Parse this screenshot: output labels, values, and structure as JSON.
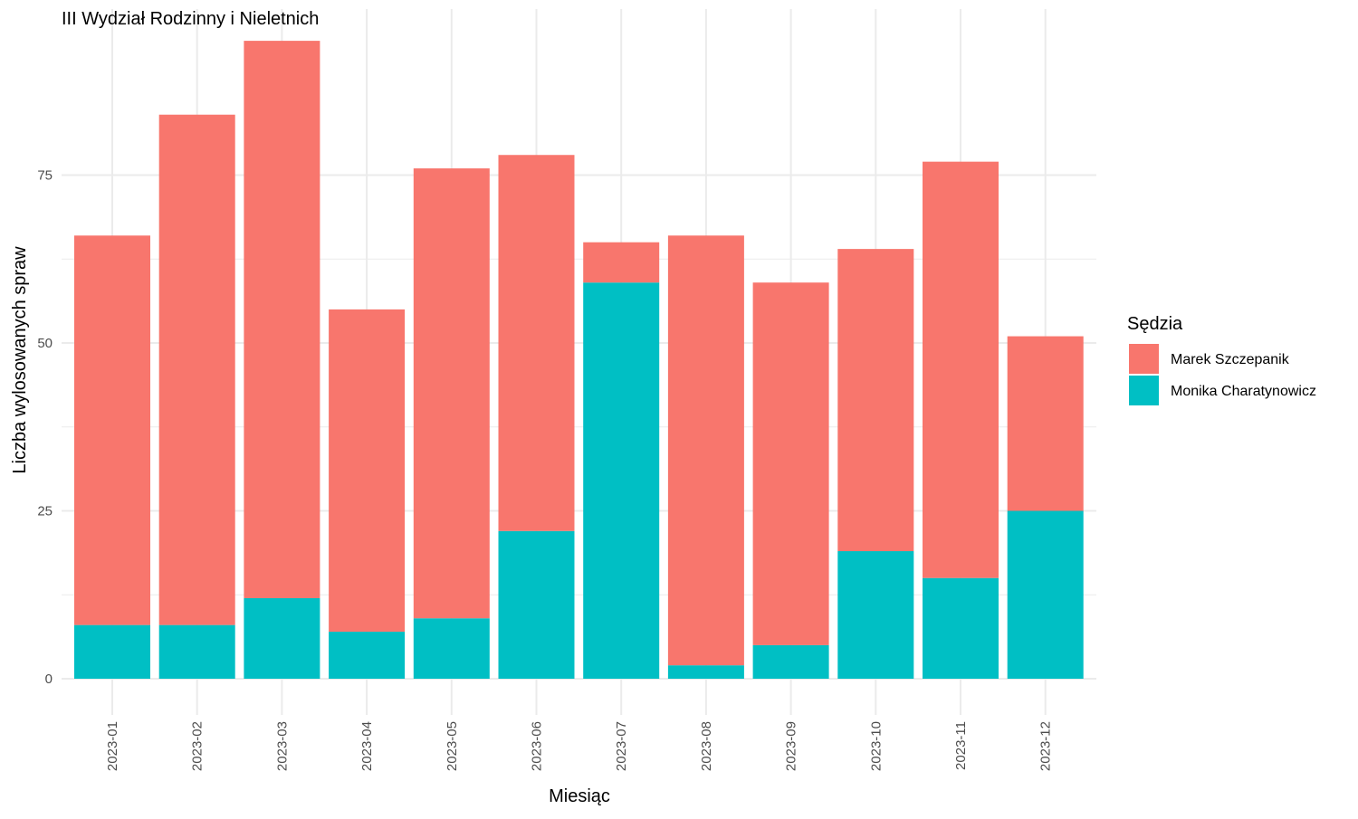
{
  "chart_data": {
    "type": "bar",
    "stacked": true,
    "title": "III Wydział Rodzinny i Nieletnich",
    "xlabel": "Miesiąc",
    "ylabel": "Liczba wylosowanych spraw",
    "ylim": [
      0,
      97
    ],
    "y_ticks": [
      0,
      25,
      50,
      75
    ],
    "grid": true,
    "legend": {
      "title": "Sędzia",
      "placement": "right"
    },
    "categories": [
      "2023-01",
      "2023-02",
      "2023-03",
      "2023-04",
      "2023-05",
      "2023-06",
      "2023-07",
      "2023-08",
      "2023-09",
      "2023-10",
      "2023-11",
      "2023-12"
    ],
    "series": [
      {
        "name": "Monika Charatynowicz",
        "color": "#00bfc4",
        "values": [
          8,
          8,
          12,
          7,
          9,
          22,
          59,
          2,
          5,
          19,
          15,
          25
        ]
      },
      {
        "name": "Marek Szczepanik",
        "color": "#f8766d",
        "values": [
          58,
          76,
          83,
          48,
          67,
          56,
          6,
          64,
          54,
          45,
          62,
          26
        ]
      }
    ]
  }
}
